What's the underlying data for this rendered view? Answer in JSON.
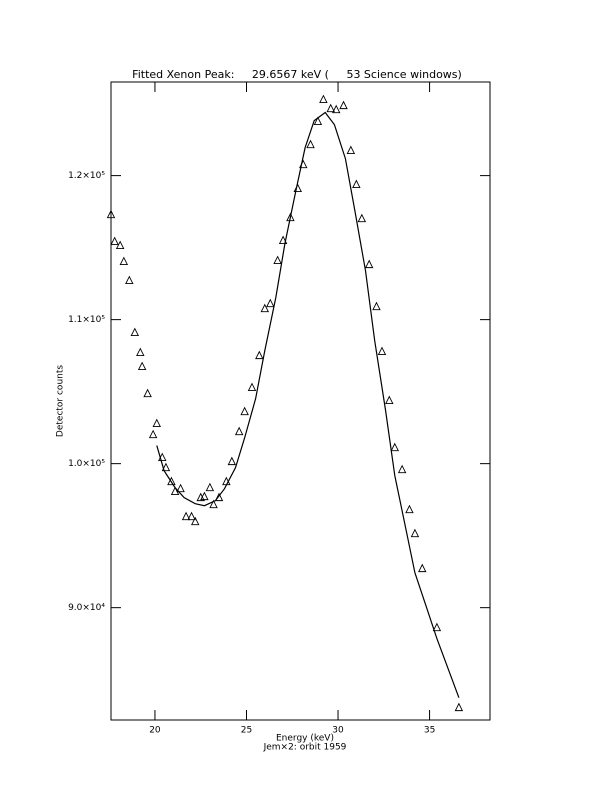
{
  "chart_data": {
    "type": "scatter",
    "title": "Fitted Xenon Peak:     29.6567 keV (     53 Science windows)",
    "x_label": "Energy (keV)",
    "subtitle": "Jem×2: orbit 1959",
    "y_label": "Detector counts",
    "xlim": [
      17.6,
      38.3
    ],
    "ylim": [
      82200,
      126500
    ],
    "xticks": [
      20,
      25,
      30,
      35
    ],
    "yticks": [
      {
        "value": 90000,
        "label": "9.0×10⁴"
      },
      {
        "value": 100000,
        "label": "1.0×10⁵"
      },
      {
        "value": 110000,
        "label": "1.1×10⁵"
      },
      {
        "value": 120000,
        "label": "1.2×10⁵"
      }
    ],
    "color": "#000000",
    "points": {
      "x": [
        17.6,
        17.8,
        18.1,
        18.3,
        18.6,
        18.9,
        19.2,
        19.3,
        19.6,
        19.9,
        20.1,
        20.4,
        20.6,
        20.9,
        21.1,
        21.4,
        21.7,
        22.0,
        22.2,
        22.5,
        22.7,
        23.0,
        23.2,
        23.5,
        23.9,
        24.2,
        24.6,
        24.9,
        25.3,
        25.7,
        26.0,
        26.3,
        26.7,
        27.0,
        27.4,
        27.8,
        28.1,
        28.5,
        28.9,
        29.2,
        29.6,
        29.9,
        30.3,
        30.7,
        31.0,
        31.3,
        31.7,
        32.1,
        32.4,
        32.8,
        33.1,
        33.5,
        33.9,
        34.2,
        34.6,
        35.4,
        36.6
      ],
      "y": [
        117290,
        115420,
        115140,
        114030,
        112710,
        109100,
        107710,
        106740,
        104860,
        102010,
        102780,
        100420,
        99720,
        98750,
        98060,
        98260,
        96320,
        96320,
        95970,
        97640,
        97710,
        98330,
        97150,
        97640,
        98750,
        100140,
        102220,
        103610,
        105280,
        107500,
        110760,
        111110,
        114100,
        115490,
        117080,
        119100,
        120760,
        122150,
        123750,
        125280,
        124650,
        124580,
        124860,
        121740,
        119380,
        117010,
        113820,
        110900,
        107780,
        104380,
        101110,
        99580,
        96800,
        95140,
        92710,
        88610,
        83060
      ]
    },
    "fit": {
      "x": [
        20.1,
        20.5,
        21.1,
        21.6,
        22.2,
        22.7,
        23.3,
        23.8,
        24.4,
        24.9,
        25.5,
        26.0,
        26.6,
        27.1,
        27.7,
        28.2,
        28.7,
        29.3,
        29.8,
        30.4,
        30.9,
        31.5,
        32.0,
        32.6,
        33.1,
        33.7,
        34.2,
        34.8,
        35.4,
        36.6
      ],
      "y": [
        101250,
        99510,
        98330,
        97640,
        97220,
        97080,
        97430,
        98260,
        99720,
        101810,
        104510,
        107850,
        111530,
        115280,
        118960,
        121940,
        123820,
        124380,
        123540,
        121180,
        117710,
        113400,
        108540,
        103680,
        99170,
        95490,
        92430,
        90140,
        87850,
        83750
      ]
    }
  }
}
